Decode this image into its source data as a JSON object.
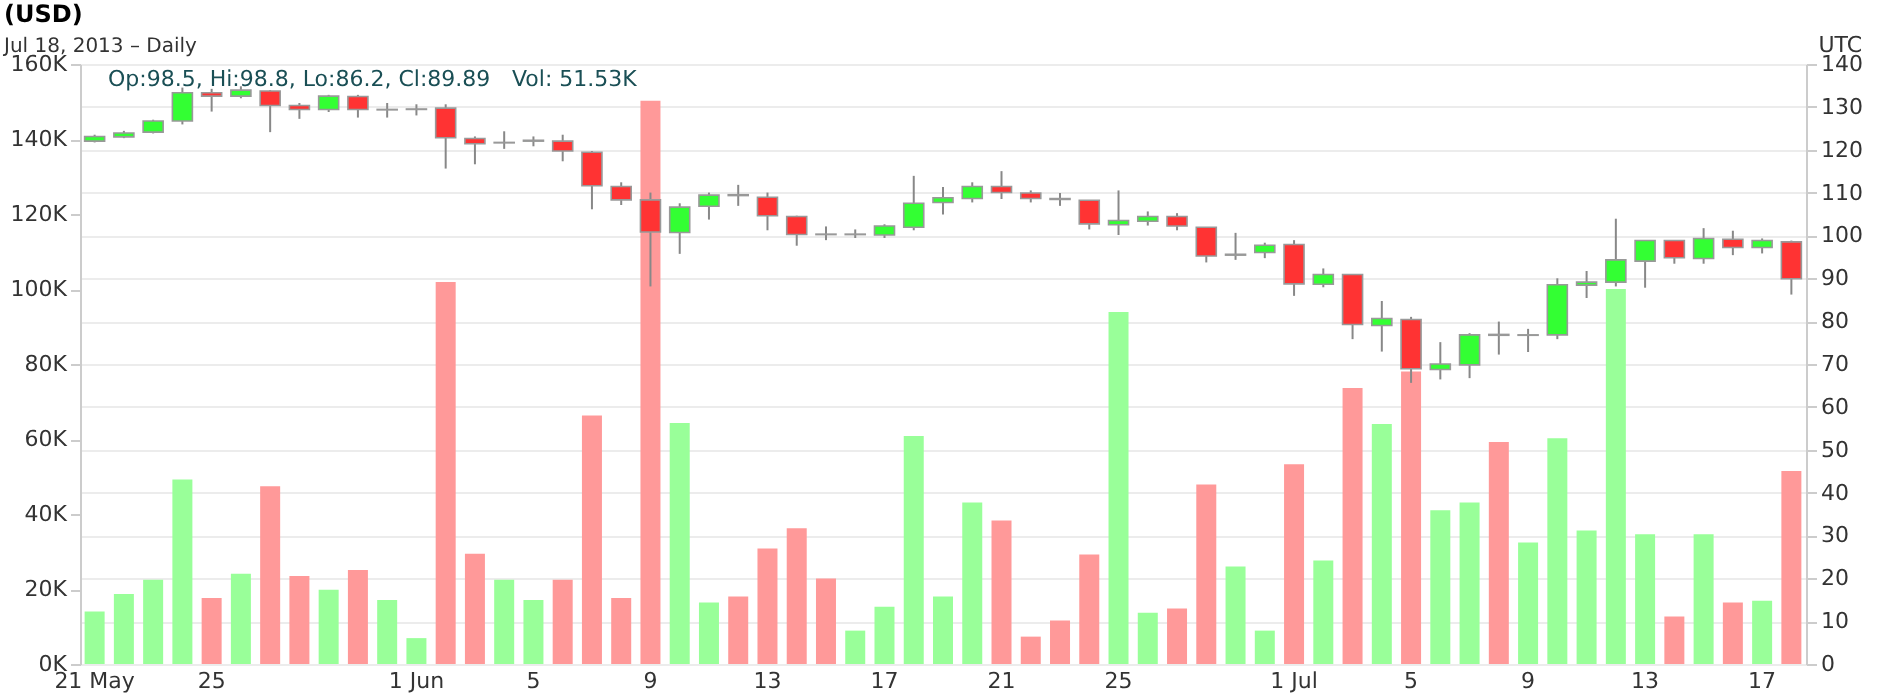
{
  "chart_data": {
    "type": "candlestick",
    "title": "(USD)",
    "subtitle": "Jul 18, 2013 – Daily",
    "annotations": [
      "Op:98.5, Hi:98.8, Lo:86.2, Cl:89.89",
      "Vol: 51.53K",
      "UTC"
    ],
    "categories": [
      "21 May",
      null,
      null,
      null,
      "25",
      null,
      null,
      null,
      null,
      null,
      null,
      "1 Jun",
      null,
      null,
      null,
      "5",
      null,
      null,
      null,
      "9",
      null,
      null,
      null,
      "13",
      null,
      null,
      null,
      "17",
      null,
      null,
      null,
      "21",
      null,
      null,
      null,
      "25",
      null,
      null,
      null,
      null,
      null,
      "1 Jul",
      null,
      null,
      null,
      "5",
      null,
      null,
      null,
      "9",
      null,
      null,
      null,
      "13",
      null,
      null,
      null,
      "17",
      null
    ],
    "ohlc": [
      [
        122.0,
        123.5,
        121.7,
        123.1
      ],
      [
        123.0,
        124.4,
        122.7,
        123.9
      ],
      [
        124.1,
        127.0,
        123.8,
        126.7
      ],
      [
        126.7,
        134.5,
        125.9,
        133.3
      ],
      [
        133.3,
        134.2,
        128.9,
        132.5
      ],
      [
        132.5,
        134.8,
        132.0,
        133.9
      ],
      [
        133.7,
        133.9,
        124.1,
        130.3
      ],
      [
        130.3,
        130.9,
        127.2,
        129.4
      ],
      [
        129.4,
        132.8,
        128.8,
        132.5
      ],
      [
        132.4,
        132.8,
        127.5,
        129.4
      ],
      [
        129.3,
        130.9,
        127.5,
        129.4
      ],
      [
        129.4,
        130.6,
        128.0,
        129.5
      ],
      [
        129.7,
        130.6,
        115.6,
        122.8
      ],
      [
        122.6,
        123.1,
        116.6,
        121.4
      ],
      [
        121.6,
        124.3,
        120.2,
        121.7
      ],
      [
        122.0,
        123.1,
        120.8,
        122.2
      ],
      [
        122.0,
        123.5,
        117.3,
        119.7
      ],
      [
        119.4,
        119.7,
        106.1,
        111.6
      ],
      [
        111.4,
        112.4,
        107.1,
        108.3
      ],
      [
        108.3,
        110.0,
        88.1,
        100.8
      ],
      [
        100.7,
        107.5,
        95.7,
        106.6
      ],
      [
        106.8,
        110.0,
        103.7,
        109.4
      ],
      [
        109.5,
        111.8,
        106.9,
        109.3
      ],
      [
        108.9,
        110.0,
        101.2,
        104.6
      ],
      [
        104.4,
        104.6,
        97.6,
        100.2
      ],
      [
        100.3,
        102.1,
        98.9,
        100.2
      ],
      [
        100.2,
        101.4,
        99.4,
        100.3
      ],
      [
        100.1,
        102.6,
        99.4,
        102.2
      ],
      [
        101.9,
        113.9,
        101.2,
        107.5
      ],
      [
        107.7,
        111.3,
        104.9,
        108.8
      ],
      [
        108.6,
        112.4,
        107.7,
        111.4
      ],
      [
        111.4,
        115.0,
        108.5,
        110.0
      ],
      [
        109.9,
        110.5,
        107.7,
        108.6
      ],
      [
        108.6,
        109.9,
        106.9,
        108.4
      ],
      [
        108.2,
        108.2,
        101.4,
        102.7
      ],
      [
        102.5,
        110.5,
        100.1,
        103.5
      ],
      [
        103.3,
        105.6,
        102.3,
        104.4
      ],
      [
        104.4,
        105.2,
        101.2,
        102.2
      ],
      [
        101.9,
        101.9,
        93.7,
        95.2
      ],
      [
        95.4,
        100.6,
        94.3,
        95.6
      ],
      [
        96.0,
        98.3,
        94.7,
        97.7
      ],
      [
        97.9,
        98.9,
        85.9,
        88.7
      ],
      [
        88.6,
        92.3,
        87.9,
        90.9
      ],
      [
        90.9,
        90.9,
        75.8,
        79.2
      ],
      [
        79.0,
        84.7,
        72.9,
        80.6
      ],
      [
        80.4,
        81.0,
        65.6,
        68.9
      ],
      [
        68.7,
        75.1,
        66.4,
        70.0
      ],
      [
        69.8,
        77.2,
        66.7,
        76.8
      ],
      [
        76.9,
        79.9,
        72.2,
        76.7
      ],
      [
        76.7,
        78.2,
        72.8,
        76.8
      ],
      [
        76.8,
        90.0,
        75.8,
        88.5
      ],
      [
        88.4,
        91.7,
        85.4,
        89.1
      ],
      [
        89.1,
        103.9,
        88.1,
        94.3
      ],
      [
        94.0,
        98.8,
        87.8,
        98.8
      ],
      [
        98.8,
        98.9,
        93.4,
        94.8
      ],
      [
        94.6,
        101.7,
        93.4,
        99.3
      ],
      [
        99.1,
        101.1,
        95.4,
        97.2
      ],
      [
        97.2,
        99.3,
        95.8,
        98.8
      ],
      [
        98.5,
        98.8,
        86.2,
        89.89
      ]
    ],
    "colors": [
      "#33ff33",
      "#33ff33",
      "#33ff33",
      "#33ff33",
      "#ff3333",
      "#33ff33",
      "#ff3333",
      "#ff3333",
      "#33ff33",
      "#ff3333",
      "#33ff33",
      "#33ff33",
      "#ff3333",
      "#ff3333",
      "#33ff33",
      "#33ff33",
      "#ff3333",
      "#ff3333",
      "#ff3333",
      "#ff3333",
      "#33ff33",
      "#33ff33",
      "#ff3333",
      "#ff3333",
      "#ff3333",
      "#ff3333",
      "#33ff33",
      "#33ff33",
      "#33ff33",
      "#33ff33",
      "#33ff33",
      "#ff3333",
      "#ff3333",
      "#ff3333",
      "#ff3333",
      "#33ff33",
      "#33ff33",
      "#ff3333",
      "#ff3333",
      "#33ff33",
      "#33ff33",
      "#ff3333",
      "#33ff33",
      "#ff3333",
      "#33ff33",
      "#ff3333",
      "#33ff33",
      "#33ff33",
      "#ff3333",
      "#33ff33",
      "#33ff33",
      "#33ff33",
      "#33ff33",
      "#33ff33",
      "#ff3333",
      "#33ff33",
      "#ff3333",
      "#33ff33",
      "#ff3333"
    ],
    "series": [
      {
        "type": "bar",
        "axis": "y2",
        "values": [
          14000,
          18700,
          22500,
          49200,
          17600,
          24100,
          47400,
          23500,
          19800,
          25100,
          17100,
          6900,
          101900,
          29400,
          22500,
          17100,
          22500,
          66300,
          17600,
          150200,
          64300,
          16400,
          18000,
          30800,
          36200,
          22800,
          8900,
          15300,
          60800,
          18000,
          43100,
          38300,
          7300,
          11600,
          29200,
          93900,
          13700,
          14800,
          47900,
          26000,
          8900,
          53300,
          27600,
          73600,
          64000,
          78000,
          41000,
          43100,
          59200,
          32400,
          60200,
          35600,
          100000,
          34600,
          12700,
          34600,
          16400,
          16900,
          51500
        ],
        "colors": [
          "#99ff99",
          "#99ff99",
          "#99ff99",
          "#99ff99",
          "#ff9999",
          "#99ff99",
          "#ff9999",
          "#ff9999",
          "#99ff99",
          "#ff9999",
          "#99ff99",
          "#99ff99",
          "#ff9999",
          "#ff9999",
          "#99ff99",
          "#99ff99",
          "#ff9999",
          "#ff9999",
          "#ff9999",
          "#ff9999",
          "#99ff99",
          "#99ff99",
          "#ff9999",
          "#ff9999",
          "#ff9999",
          "#ff9999",
          "#99ff99",
          "#99ff99",
          "#99ff99",
          "#99ff99",
          "#99ff99",
          "#ff9999",
          "#ff9999",
          "#ff9999",
          "#ff9999",
          "#99ff99",
          "#99ff99",
          "#ff9999",
          "#ff9999",
          "#99ff99",
          "#99ff99",
          "#ff9999",
          "#99ff99",
          "#ff9999",
          "#99ff99",
          "#ff9999",
          "#99ff99",
          "#99ff99",
          "#ff9999",
          "#99ff99",
          "#99ff99",
          "#99ff99",
          "#99ff99",
          "#99ff99",
          "#ff9999",
          "#99ff99",
          "#ff9999",
          "#99ff99",
          "#ff9999"
        ]
      }
    ],
    "ylim": [
      0,
      140
    ],
    "yticks": [
      0,
      10,
      20,
      30,
      40,
      50,
      60,
      70,
      80,
      90,
      100,
      110,
      120,
      130,
      140
    ],
    "y2lim": [
      0,
      160000
    ],
    "y2ticks": [
      {
        "value": 0,
        "label": "0K"
      },
      {
        "value": 20000,
        "label": "20K"
      },
      {
        "value": 40000,
        "label": "40K"
      },
      {
        "value": 60000,
        "label": "60K"
      },
      {
        "value": 80000,
        "label": "80K"
      },
      {
        "value": 100000,
        "label": "100K"
      },
      {
        "value": 120000,
        "label": "120K"
      },
      {
        "value": 140000,
        "label": "140K"
      },
      {
        "value": 160000,
        "label": "160K"
      }
    ],
    "grid": true
  }
}
